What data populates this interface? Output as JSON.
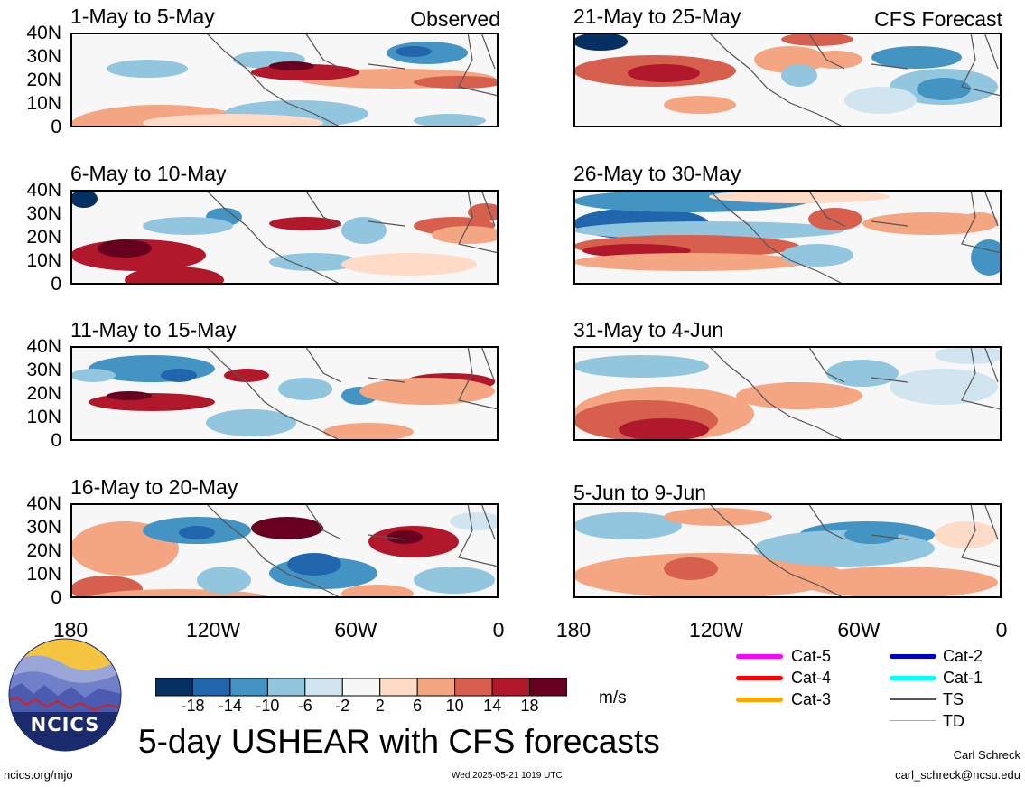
{
  "left_column": {
    "panels": [
      {
        "title": "1-May to 5-May",
        "corner_label": "Observed"
      },
      {
        "title": "6-May to 10-May",
        "corner_label": ""
      },
      {
        "title": "11-May to 15-May",
        "corner_label": ""
      },
      {
        "title": "16-May to 20-May",
        "corner_label": ""
      }
    ]
  },
  "right_column": {
    "panels": [
      {
        "title": "21-May to 25-May",
        "corner_label": "CFS Forecast"
      },
      {
        "title": "26-May to 30-May",
        "corner_label": ""
      },
      {
        "title": "31-May to 4-Jun",
        "corner_label": ""
      },
      {
        "title": "5-Jun to 9-Jun",
        "corner_label": ""
      }
    ]
  },
  "axes": {
    "y_ticks": [
      "40N",
      "30N",
      "20N",
      "10N",
      "0"
    ],
    "x_ticks": [
      "180",
      "120W",
      "60W",
      "0"
    ]
  },
  "colorbar": {
    "unit": "m/s",
    "tick_labels": [
      "-18",
      "-14",
      "-10",
      "-6",
      "-2",
      "2",
      "6",
      "10",
      "14",
      "18"
    ],
    "colors": [
      "#053061",
      "#2166ac",
      "#4393c3",
      "#92c5de",
      "#d1e5f0",
      "#f7f7f7",
      "#fddbc7",
      "#f4a582",
      "#d6604d",
      "#b2182b",
      "#67001f"
    ]
  },
  "legend": {
    "items": [
      {
        "label": "Cat-5",
        "color": "#ff00ff"
      },
      {
        "label": "Cat-4",
        "color": "#ff0000"
      },
      {
        "label": "Cat-3",
        "color": "#ffa500"
      },
      {
        "label": "Cat-2",
        "color": "#0000cd"
      },
      {
        "label": "Cat-1",
        "color": "#00ffff"
      },
      {
        "label": "TS",
        "color": "#555555"
      },
      {
        "label": "TD",
        "color": "#aaaaaa"
      }
    ]
  },
  "logo": {
    "text": "NCICS"
  },
  "main_title": "5-day USHEAR with CFS forecasts",
  "footer": {
    "left": "ncics.org/mjo",
    "center": "Wed 2025-05-21 1019 UTC",
    "author": "Carl Schreck",
    "email": "carl_schreck@ncsu.edu"
  }
}
